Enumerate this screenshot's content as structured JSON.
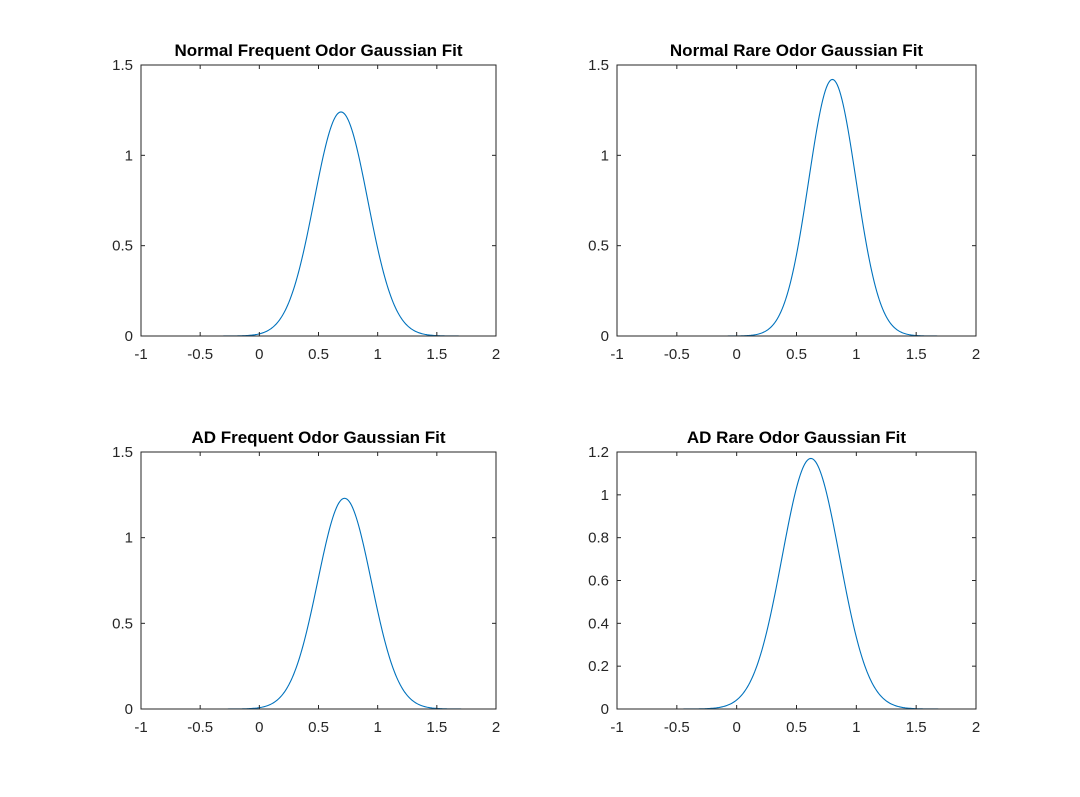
{
  "figure": {
    "background": "#ffffff",
    "line_color": "#0072bd"
  },
  "chart_data": [
    {
      "type": "line",
      "title": "Normal Frequent Odor Gaussian Fit",
      "xlabel": "",
      "ylabel": "",
      "xlim": [
        -1,
        2
      ],
      "ylim": [
        0,
        1.5
      ],
      "xticks": [
        -1,
        -0.5,
        0,
        0.5,
        1,
        1.5,
        2
      ],
      "xtick_labels": [
        "-1",
        "-0.5",
        "0",
        "0.5",
        "1",
        "1.5",
        "2"
      ],
      "yticks": [
        0,
        0.5,
        1,
        1.5
      ],
      "ytick_labels": [
        "0",
        "0.5",
        "1",
        "1.5"
      ],
      "grid": false,
      "series": [
        {
          "model": "gaussian",
          "amplitude": 1.24,
          "mean": 0.69,
          "sigma": 0.32,
          "color": "#0072bd"
        }
      ]
    },
    {
      "type": "line",
      "title": "Normal Rare Odor Gaussian Fit",
      "xlabel": "",
      "ylabel": "",
      "xlim": [
        -1,
        2
      ],
      "ylim": [
        0,
        1.5
      ],
      "xticks": [
        -1,
        -0.5,
        0,
        0.5,
        1,
        1.5,
        2
      ],
      "xtick_labels": [
        "-1",
        "-0.5",
        "0",
        "0.5",
        "1",
        "1.5",
        "2"
      ],
      "yticks": [
        0,
        0.5,
        1,
        1.5
      ],
      "ytick_labels": [
        "0",
        "0.5",
        "1",
        "1.5"
      ],
      "grid": false,
      "series": [
        {
          "model": "gaussian",
          "amplitude": 1.42,
          "mean": 0.8,
          "sigma": 0.28,
          "color": "#0072bd"
        }
      ]
    },
    {
      "type": "line",
      "title": "AD Frequent Odor Gaussian Fit",
      "xlabel": "",
      "ylabel": "",
      "xlim": [
        -1,
        2
      ],
      "ylim": [
        0,
        1.5
      ],
      "xticks": [
        -1,
        -0.5,
        0,
        0.5,
        1,
        1.5,
        2
      ],
      "xtick_labels": [
        "-1",
        "-0.5",
        "0",
        "0.5",
        "1",
        "1.5",
        "2"
      ],
      "yticks": [
        0,
        0.5,
        1,
        1.5
      ],
      "ytick_labels": [
        "0",
        "0.5",
        "1",
        "1.5"
      ],
      "grid": false,
      "series": [
        {
          "model": "gaussian",
          "amplitude": 1.23,
          "mean": 0.72,
          "sigma": 0.32,
          "color": "#0072bd"
        }
      ]
    },
    {
      "type": "line",
      "title": "AD Rare Odor Gaussian Fit",
      "xlabel": "",
      "ylabel": "",
      "xlim": [
        -1,
        2
      ],
      "ylim": [
        0,
        1.2
      ],
      "xticks": [
        -1,
        -0.5,
        0,
        0.5,
        1,
        1.5,
        2
      ],
      "xtick_labels": [
        "-1",
        "-0.5",
        "0",
        "0.5",
        "1",
        "1.5",
        "2"
      ],
      "yticks": [
        0,
        0.2,
        0.4,
        0.6,
        0.8,
        1,
        1.2
      ],
      "ytick_labels": [
        "0",
        "0.2",
        "0.4",
        "0.6",
        "0.8",
        "1",
        "1.2"
      ],
      "grid": false,
      "series": [
        {
          "model": "gaussian",
          "amplitude": 1.17,
          "mean": 0.62,
          "sigma": 0.34,
          "color": "#0072bd"
        }
      ]
    }
  ]
}
